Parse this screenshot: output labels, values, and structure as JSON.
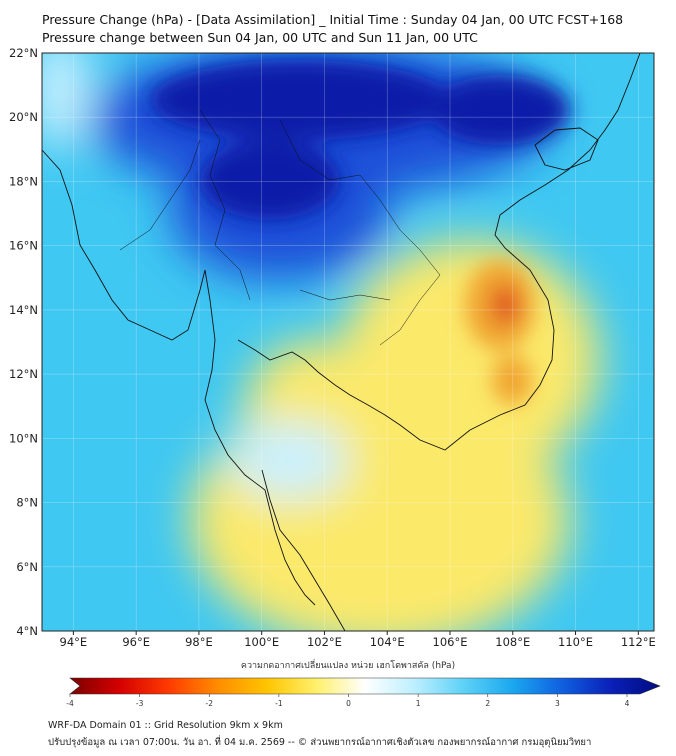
{
  "header": {
    "title_line1": "Pressure Change (hPa) - [Data Assimilation] _ Initial Time : Sunday 04 Jan, 00 UTC FCST+168",
    "title_line2": "Pressure change between Sun 04 Jan, 00 UTC and Sun 11 Jan, 00 UTC"
  },
  "map": {
    "lat_labels": [
      "22°N",
      "20°N",
      "18°N",
      "16°N",
      "14°N",
      "12°N",
      "10°N",
      "8°N",
      "6°N",
      "4°N"
    ],
    "lon_labels": [
      "94°E",
      "96°E",
      "98°E",
      "100°E",
      "102°E",
      "104°E",
      "106°E",
      "108°E",
      "110°E",
      "112°E"
    ],
    "colors": {
      "ocean_base": "#3fc8f2",
      "strong_rise": "#0c1ea8",
      "moderate_rise": "#1d4fd8",
      "weak_rise": "#c9f1ff",
      "weak_fall": "#fbe96a",
      "moderate_fall": "#f0a630",
      "strong_fall": "#e05420",
      "coastline": "#111111"
    }
  },
  "colorbar": {
    "label": "ความกดอากาศเปลี่ยนแปลง หน่วย เฮกโตพาสคัล (hPa)",
    "ticks": [
      "-4",
      "-3",
      "-2",
      "-1",
      "0",
      "1",
      "2",
      "3",
      "4"
    ],
    "colors": [
      "#7a0000",
      "#d40000",
      "#ff3a00",
      "#ff8c00",
      "#ffc400",
      "#fff06a",
      "#ffffff",
      "#bdefff",
      "#5fd2f7",
      "#1aa8ef",
      "#1060e0",
      "#0a20b8",
      "#000c80"
    ]
  },
  "footer": {
    "line1": "WRF-DA Domain 01 :: Grid Resolution 9km x 9km",
    "line2": "ปรับปรุงข้อมูล ณ เวลา 07:00น. วัน อา. ที่ 04 ม.ค. 2569 -- © ส่วนพยากรณ์อากาศเชิงตัวเลข กองพยากรณ์อากาศ กรมอุตุนิยมวิทยา"
  }
}
